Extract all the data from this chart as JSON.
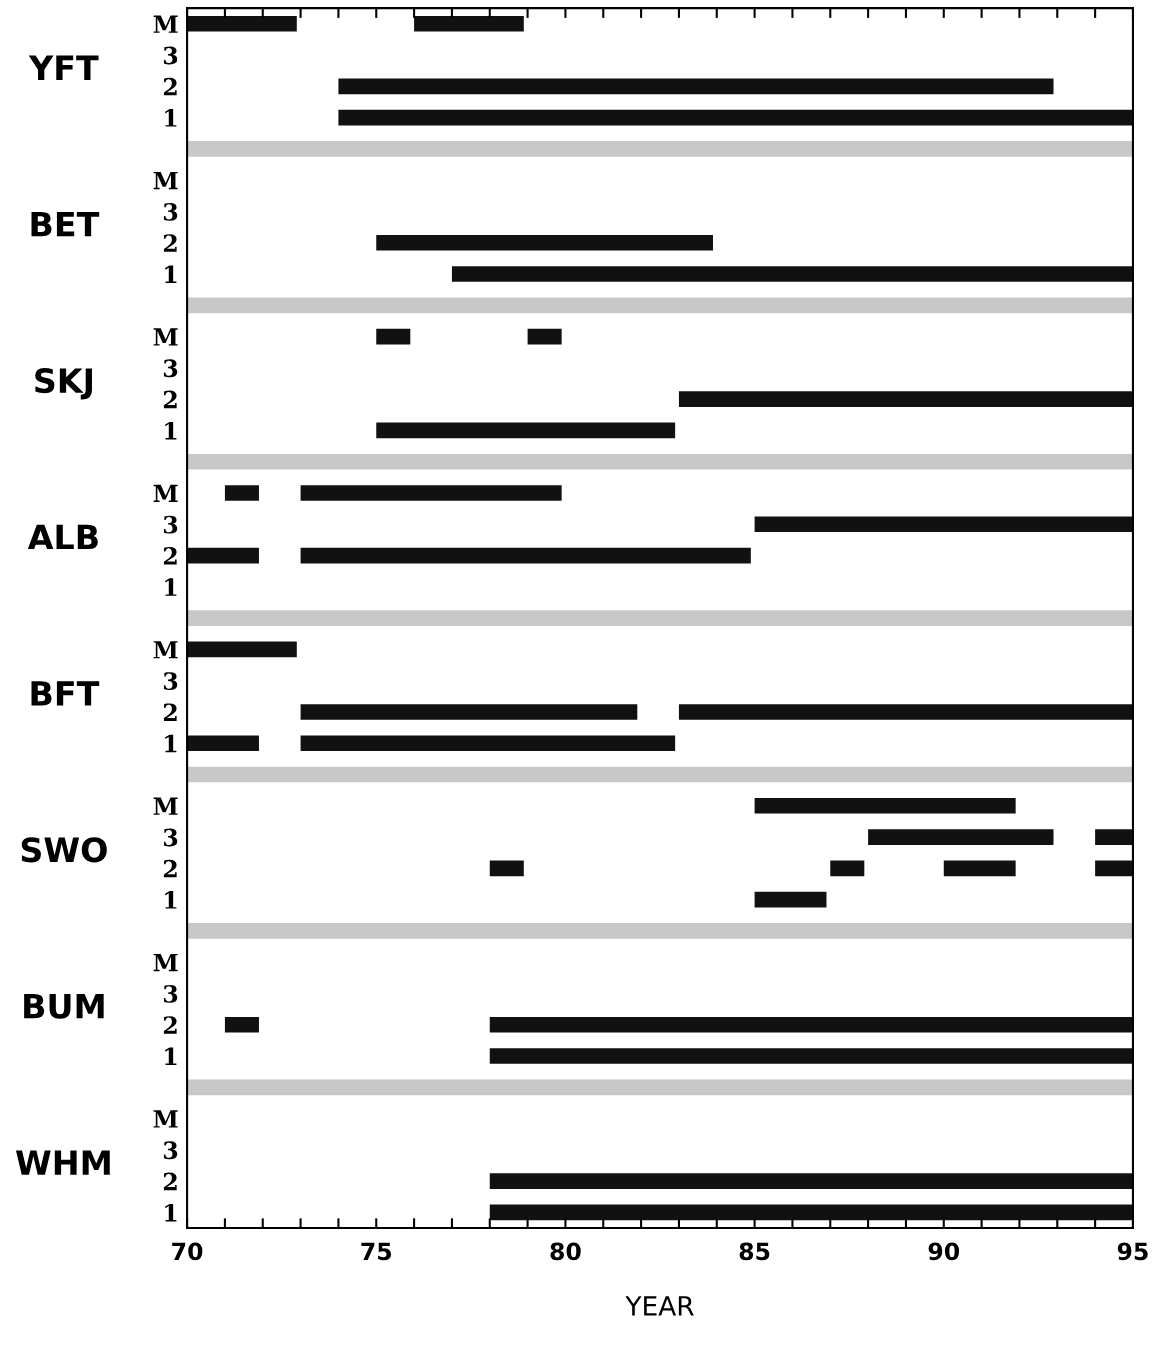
{
  "chart_data": {
    "type": "bar",
    "orientation": "horizontal",
    "xlabel": "YEAR",
    "categories": [
      "M",
      "3",
      "2",
      "1",
      null,
      "M",
      "3",
      "2",
      "1",
      null,
      "M",
      "3",
      "2",
      "1",
      null,
      "M",
      "3",
      "2",
      "1",
      null,
      "M",
      "3",
      "2",
      "1",
      null,
      "M",
      "3",
      "2",
      "1",
      null,
      "M",
      "3",
      "2",
      "1",
      null,
      "M",
      "3",
      "2",
      "1"
    ],
    "annotations": [
      "YFT",
      "BET",
      "SKJ",
      "ALB",
      "BFT",
      "SWO",
      "BUM",
      "WHM"
    ],
    "series": [
      {
        "color": "#c8c8c8",
        "base": [
          null,
          null,
          null,
          null,
          70,
          null,
          null,
          null,
          null,
          70,
          null,
          null,
          null,
          null,
          70,
          null,
          null,
          null,
          null,
          70,
          null,
          null,
          null,
          null,
          70,
          null,
          null,
          null,
          null,
          70,
          null,
          null,
          null,
          null,
          70,
          null,
          null,
          null,
          null
        ],
        "values": [
          null,
          null,
          null,
          null,
          25,
          null,
          null,
          null,
          null,
          25,
          null,
          null,
          null,
          null,
          25,
          null,
          null,
          null,
          null,
          25,
          null,
          null,
          null,
          null,
          25,
          null,
          null,
          null,
          null,
          25,
          null,
          null,
          null,
          null,
          25,
          null,
          null,
          null,
          null
        ]
      },
      {
        "color": "#111111",
        "base": [
          70,
          null,
          74,
          74,
          null,
          null,
          null,
          75,
          77,
          null,
          75,
          null,
          83,
          75,
          null,
          71,
          85,
          70,
          null,
          null,
          70,
          null,
          73,
          70,
          null,
          85,
          88,
          78,
          85,
          null,
          null,
          null,
          71,
          78,
          null,
          null,
          null,
          78,
          78
        ],
        "values": [
          2.9,
          null,
          18.9,
          21,
          null,
          null,
          null,
          8.9,
          18,
          null,
          0.9,
          null,
          12,
          7.9,
          null,
          0.9,
          10,
          1.9,
          null,
          null,
          2.9,
          null,
          8.9,
          1.9,
          null,
          6.9,
          4.9,
          0.9,
          1.9,
          null,
          null,
          null,
          0.9,
          17,
          null,
          null,
          null,
          17,
          17
        ]
      },
      {
        "color": "#111111",
        "base": [
          76,
          null,
          null,
          null,
          null,
          null,
          null,
          null,
          null,
          null,
          79,
          null,
          null,
          null,
          null,
          73,
          null,
          73,
          null,
          null,
          null,
          null,
          83,
          73,
          null,
          null,
          94,
          87,
          null,
          null,
          null,
          null,
          78,
          null,
          null,
          null,
          null,
          null,
          null
        ],
        "values": [
          2.9,
          null,
          null,
          null,
          null,
          null,
          null,
          null,
          null,
          null,
          0.9,
          null,
          null,
          null,
          null,
          6.9,
          null,
          11.9,
          null,
          null,
          null,
          null,
          12,
          9.9,
          null,
          null,
          1,
          0.9,
          null,
          null,
          null,
          null,
          17,
          null,
          null,
          null,
          null,
          null,
          null
        ]
      },
      {
        "color": "#111111",
        "base": [
          null,
          null,
          null,
          null,
          null,
          null,
          null,
          null,
          null,
          null,
          null,
          null,
          null,
          null,
          null,
          null,
          null,
          null,
          null,
          null,
          null,
          null,
          null,
          null,
          null,
          null,
          null,
          90,
          null,
          null,
          null,
          null,
          null,
          null,
          null,
          null,
          null,
          null,
          null
        ],
        "values": [
          null,
          null,
          null,
          null,
          null,
          null,
          null,
          null,
          null,
          null,
          null,
          null,
          null,
          null,
          null,
          null,
          null,
          null,
          null,
          null,
          null,
          null,
          null,
          null,
          null,
          null,
          null,
          1.9,
          null,
          null,
          null,
          null,
          null,
          null,
          null,
          null,
          null,
          null,
          null
        ]
      },
      {
        "color": "#111111",
        "base": [
          null,
          null,
          null,
          null,
          null,
          null,
          null,
          null,
          null,
          null,
          null,
          null,
          null,
          null,
          null,
          null,
          null,
          null,
          null,
          null,
          null,
          null,
          null,
          null,
          null,
          null,
          null,
          94,
          null,
          null,
          null,
          null,
          null,
          null,
          null,
          null,
          null,
          null,
          null
        ],
        "values": [
          null,
          null,
          null,
          null,
          null,
          null,
          null,
          null,
          null,
          null,
          null,
          null,
          null,
          null,
          null,
          null,
          null,
          null,
          null,
          null,
          null,
          null,
          null,
          null,
          null,
          null,
          null,
          1,
          null,
          null,
          null,
          null,
          null,
          null,
          null,
          null,
          null,
          null,
          null
        ]
      }
    ],
    "xlim": [
      70,
      95
    ],
    "xticks": [
      70,
      {
        "value": 71,
        "label": null
      },
      {
        "value": 72,
        "label": null
      },
      {
        "value": 73,
        "label": null
      },
      {
        "value": 74,
        "label": null
      },
      75,
      {
        "value": 76,
        "label": null
      },
      {
        "value": 77,
        "label": null
      },
      {
        "value": 78,
        "label": null
      },
      {
        "value": 79,
        "label": null
      },
      80,
      {
        "value": 81,
        "label": null
      },
      {
        "value": 82,
        "label": null
      },
      {
        "value": 83,
        "label": null
      },
      {
        "value": 84,
        "label": null
      },
      85,
      {
        "value": 86,
        "label": null
      },
      {
        "value": 87,
        "label": null
      },
      {
        "value": 88,
        "label": null
      },
      {
        "value": 89,
        "label": null
      },
      90,
      {
        "value": 91,
        "label": null
      },
      {
        "value": 92,
        "label": null
      },
      {
        "value": 93,
        "label": null
      },
      {
        "value": 94,
        "label": null
      },
      95
    ],
    "grid": false,
    "legend": false
  }
}
